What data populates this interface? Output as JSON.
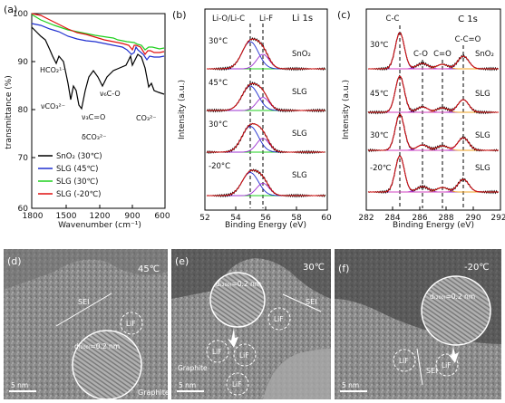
{
  "panels": {
    "a": {
      "letter": "(a)",
      "ylabel": "transmittance (%)",
      "xlabel": "Wavenumber (cm⁻¹)",
      "yticks": [
        "100",
        "90",
        "80",
        "70",
        "60"
      ],
      "xticks": [
        "1800",
        "1500",
        "1200",
        "900",
        "600"
      ],
      "annotations": [
        "HCO₂¹⁻",
        "νCO₃²⁻",
        "ν₃C=O",
        "δCO₃²⁻",
        "ν₆C-O",
        "CO₃²⁻"
      ],
      "legend": [
        "SnO₂ (30℃)",
        "SLG (45℃)",
        "SLG (30℃)",
        "SLG (-20℃)"
      ],
      "colors": [
        "#000000",
        "#1f2fd0",
        "#1fd01f",
        "#e01010"
      ]
    },
    "b": {
      "letter": "(b)",
      "element": "Li 1s",
      "ylabel": "Intensity (a.u.)",
      "xlabel": "Binding Energy (eV)",
      "xticks": [
        "52",
        "54",
        "56",
        "58",
        "60"
      ],
      "peaks": [
        "Li-O/Li-C",
        "Li-F"
      ],
      "traces": [
        {
          "temp": "30°C",
          "label": "SnO₂"
        },
        {
          "temp": "45°C",
          "label": "SLG"
        },
        {
          "temp": "30°C",
          "label": "SLG"
        },
        {
          "temp": "-20°C",
          "label": "SLG"
        }
      ]
    },
    "c": {
      "letter": "(c)",
      "element": "C 1s",
      "ylabel": "Intensity (a.u.)",
      "xlabel": "Binding Energy (eV)",
      "xticks": [
        "282",
        "284",
        "286",
        "288",
        "290",
        "292"
      ],
      "peaks": [
        "C-C",
        "C-O",
        "C=O",
        "C-C=O"
      ],
      "traces": [
        {
          "temp": "30℃",
          "label": "SnO₂"
        },
        {
          "temp": "45℃",
          "label": "SLG"
        },
        {
          "temp": "30℃",
          "label": "SLG"
        },
        {
          "temp": "-20℃",
          "label": "SLG"
        }
      ]
    },
    "d": {
      "letter": "(d)",
      "temp": "45℃",
      "sei": "SEI",
      "lif": "LiF",
      "dspacing": "d₍₂₀₀₎=0.2 nm",
      "material": "Graphite",
      "scalebar": "5 nm"
    },
    "e": {
      "letter": "(e)",
      "temp": "30℃",
      "sei": "SEI",
      "lif": "LiF",
      "dspacing": "d₍₂₀₀₎=0.2 nm",
      "material": "Graphite",
      "scalebar": "5 nm"
    },
    "f": {
      "letter": "(f)",
      "temp": "-20℃",
      "sei": "SEI",
      "lif": "LiF",
      "dspacing": "d₍₂₀₀₎=0.2 nm",
      "scalebar": "5 nm"
    }
  }
}
